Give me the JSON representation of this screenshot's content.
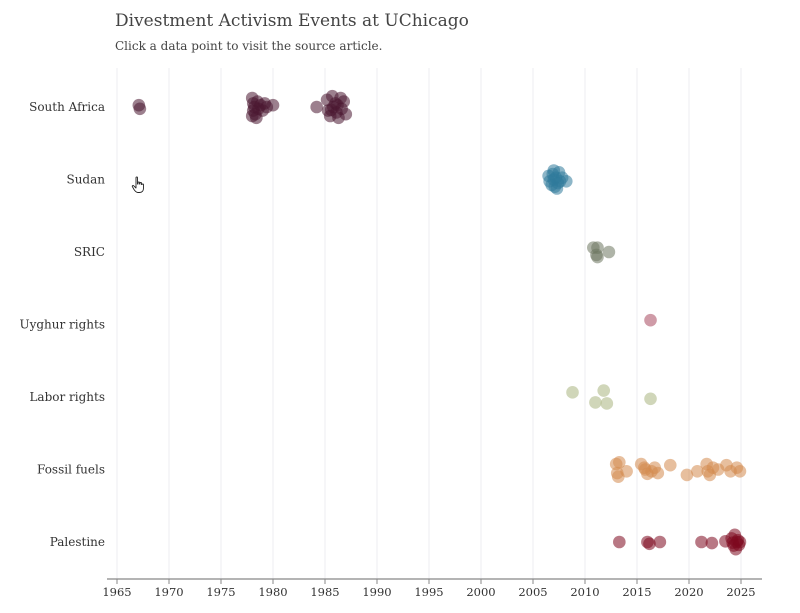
{
  "header": {
    "title": "Divestment Activism Events at UChicago",
    "subtitle": "Click a data point to visit the source article."
  },
  "chart_data": {
    "type": "scatter",
    "title": "Divestment Activism Events at UChicago",
    "subtitle": "Click a data point to visit the source article.",
    "xlabel": "",
    "ylabel": "",
    "xlim": [
      1965,
      2027
    ],
    "x_ticks": [
      1965,
      1970,
      1975,
      1980,
      1985,
      1990,
      1995,
      2000,
      2005,
      2010,
      2015,
      2020,
      2025
    ],
    "grid": "vertical",
    "categories": [
      "South Africa",
      "Sudan",
      "SRIC",
      "Uyghur rights",
      "Labor rights",
      "Fossil fuels",
      "Palestine"
    ],
    "series": [
      {
        "category": "South Africa",
        "color": "#4a1731",
        "points": [
          {
            "x": 1967.1,
            "j": -0.05
          },
          {
            "x": 1967.2,
            "j": 0.05
          },
          {
            "x": 1978.0,
            "j": -0.25
          },
          {
            "x": 1978.1,
            "j": -0.1
          },
          {
            "x": 1978.2,
            "j": 0.0
          },
          {
            "x": 1978.1,
            "j": 0.1
          },
          {
            "x": 1978.3,
            "j": 0.2
          },
          {
            "x": 1978.5,
            "j": -0.15
          },
          {
            "x": 1978.6,
            "j": 0.05
          },
          {
            "x": 1978.8,
            "j": -0.05
          },
          {
            "x": 1979.0,
            "j": 0.1
          },
          {
            "x": 1979.2,
            "j": -0.1
          },
          {
            "x": 1979.4,
            "j": 0.0
          },
          {
            "x": 1978.4,
            "j": 0.3
          },
          {
            "x": 1980.0,
            "j": -0.05
          },
          {
            "x": 1978.0,
            "j": 0.25
          },
          {
            "x": 1984.2,
            "j": 0.0
          },
          {
            "x": 1985.2,
            "j": -0.2
          },
          {
            "x": 1985.3,
            "j": 0.1
          },
          {
            "x": 1985.5,
            "j": 0.25
          },
          {
            "x": 1985.7,
            "j": -0.3
          },
          {
            "x": 1985.8,
            "j": 0.0
          },
          {
            "x": 1986.0,
            "j": -0.1
          },
          {
            "x": 1986.1,
            "j": 0.15
          },
          {
            "x": 1986.3,
            "j": 0.3
          },
          {
            "x": 1986.5,
            "j": -0.25
          },
          {
            "x": 1986.6,
            "j": 0.05
          },
          {
            "x": 1986.8,
            "j": -0.15
          },
          {
            "x": 1987.0,
            "j": 0.2
          },
          {
            "x": 1985.6,
            "j": 0.08
          },
          {
            "x": 1986.2,
            "j": -0.05
          }
        ]
      },
      {
        "category": "Sudan",
        "color": "#2f7a9b",
        "points": [
          {
            "x": 2006.5,
            "j": -0.1
          },
          {
            "x": 2006.6,
            "j": 0.05
          },
          {
            "x": 2006.8,
            "j": 0.15
          },
          {
            "x": 2006.9,
            "j": -0.15
          },
          {
            "x": 2007.0,
            "j": 0.0
          },
          {
            "x": 2007.1,
            "j": 0.2
          },
          {
            "x": 2007.2,
            "j": -0.05
          },
          {
            "x": 2007.4,
            "j": 0.1
          },
          {
            "x": 2007.5,
            "j": -0.2
          },
          {
            "x": 2007.6,
            "j": 0.05
          },
          {
            "x": 2007.8,
            "j": -0.05
          },
          {
            "x": 2007.0,
            "j": -0.25
          },
          {
            "x": 2008.2,
            "j": 0.05
          },
          {
            "x": 2007.3,
            "j": 0.25
          }
        ]
      },
      {
        "category": "SRIC",
        "color": "#6e7660",
        "points": [
          {
            "x": 2010.8,
            "j": -0.12
          },
          {
            "x": 2011.2,
            "j": -0.12
          },
          {
            "x": 2011.1,
            "j": 0.08
          },
          {
            "x": 2011.2,
            "j": 0.14
          },
          {
            "x": 2012.3,
            "j": 0.0
          }
        ]
      },
      {
        "category": "Uyghur rights",
        "color": "#a8495e",
        "points": [
          {
            "x": 2016.3,
            "j": -0.12
          }
        ]
      },
      {
        "category": "Labor rights",
        "color": "#a9b57f",
        "points": [
          {
            "x": 2008.8,
            "j": -0.13
          },
          {
            "x": 2011.0,
            "j": 0.15
          },
          {
            "x": 2011.8,
            "j": -0.18
          },
          {
            "x": 2012.1,
            "j": 0.18
          },
          {
            "x": 2016.3,
            "j": 0.05
          }
        ]
      },
      {
        "category": "Fossil fuels",
        "color": "#d38a4e",
        "points": [
          {
            "x": 2013.0,
            "j": -0.15
          },
          {
            "x": 2013.3,
            "j": -0.2
          },
          {
            "x": 2013.1,
            "j": 0.1
          },
          {
            "x": 2013.2,
            "j": 0.2
          },
          {
            "x": 2014.0,
            "j": 0.05
          },
          {
            "x": 2015.4,
            "j": -0.15
          },
          {
            "x": 2015.8,
            "j": 0.0
          },
          {
            "x": 2016.0,
            "j": 0.12
          },
          {
            "x": 2016.4,
            "j": 0.05
          },
          {
            "x": 2016.7,
            "j": -0.05
          },
          {
            "x": 2017.0,
            "j": 0.1
          },
          {
            "x": 2015.7,
            "j": -0.05
          },
          {
            "x": 2018.2,
            "j": -0.12
          },
          {
            "x": 2019.8,
            "j": 0.15
          },
          {
            "x": 2020.8,
            "j": 0.05
          },
          {
            "x": 2021.7,
            "j": -0.15
          },
          {
            "x": 2021.8,
            "j": 0.05
          },
          {
            "x": 2022.0,
            "j": 0.15
          },
          {
            "x": 2022.3,
            "j": -0.05
          },
          {
            "x": 2022.8,
            "j": 0.0
          },
          {
            "x": 2023.6,
            "j": -0.12
          },
          {
            "x": 2024.0,
            "j": 0.05
          },
          {
            "x": 2024.6,
            "j": -0.05
          },
          {
            "x": 2024.9,
            "j": 0.05
          }
        ]
      },
      {
        "category": "Palestine",
        "color": "#7d0a1f",
        "points": [
          {
            "x": 2013.3,
            "j": 0.0
          },
          {
            "x": 2016.0,
            "j": 0.0
          },
          {
            "x": 2016.2,
            "j": 0.05
          },
          {
            "x": 2017.2,
            "j": 0.0
          },
          {
            "x": 2021.2,
            "j": 0.0
          },
          {
            "x": 2022.2,
            "j": 0.03
          },
          {
            "x": 2023.5,
            "j": -0.02
          },
          {
            "x": 2024.1,
            "j": -0.1
          },
          {
            "x": 2024.3,
            "j": 0.1
          },
          {
            "x": 2024.4,
            "j": -0.2
          },
          {
            "x": 2024.5,
            "j": 0.2
          },
          {
            "x": 2024.6,
            "j": 0.0
          },
          {
            "x": 2024.7,
            "j": -0.05
          },
          {
            "x": 2024.8,
            "j": 0.08
          },
          {
            "x": 2024.9,
            "j": 0.0
          },
          {
            "x": 2024.2,
            "j": 0.02
          }
        ]
      }
    ]
  }
}
